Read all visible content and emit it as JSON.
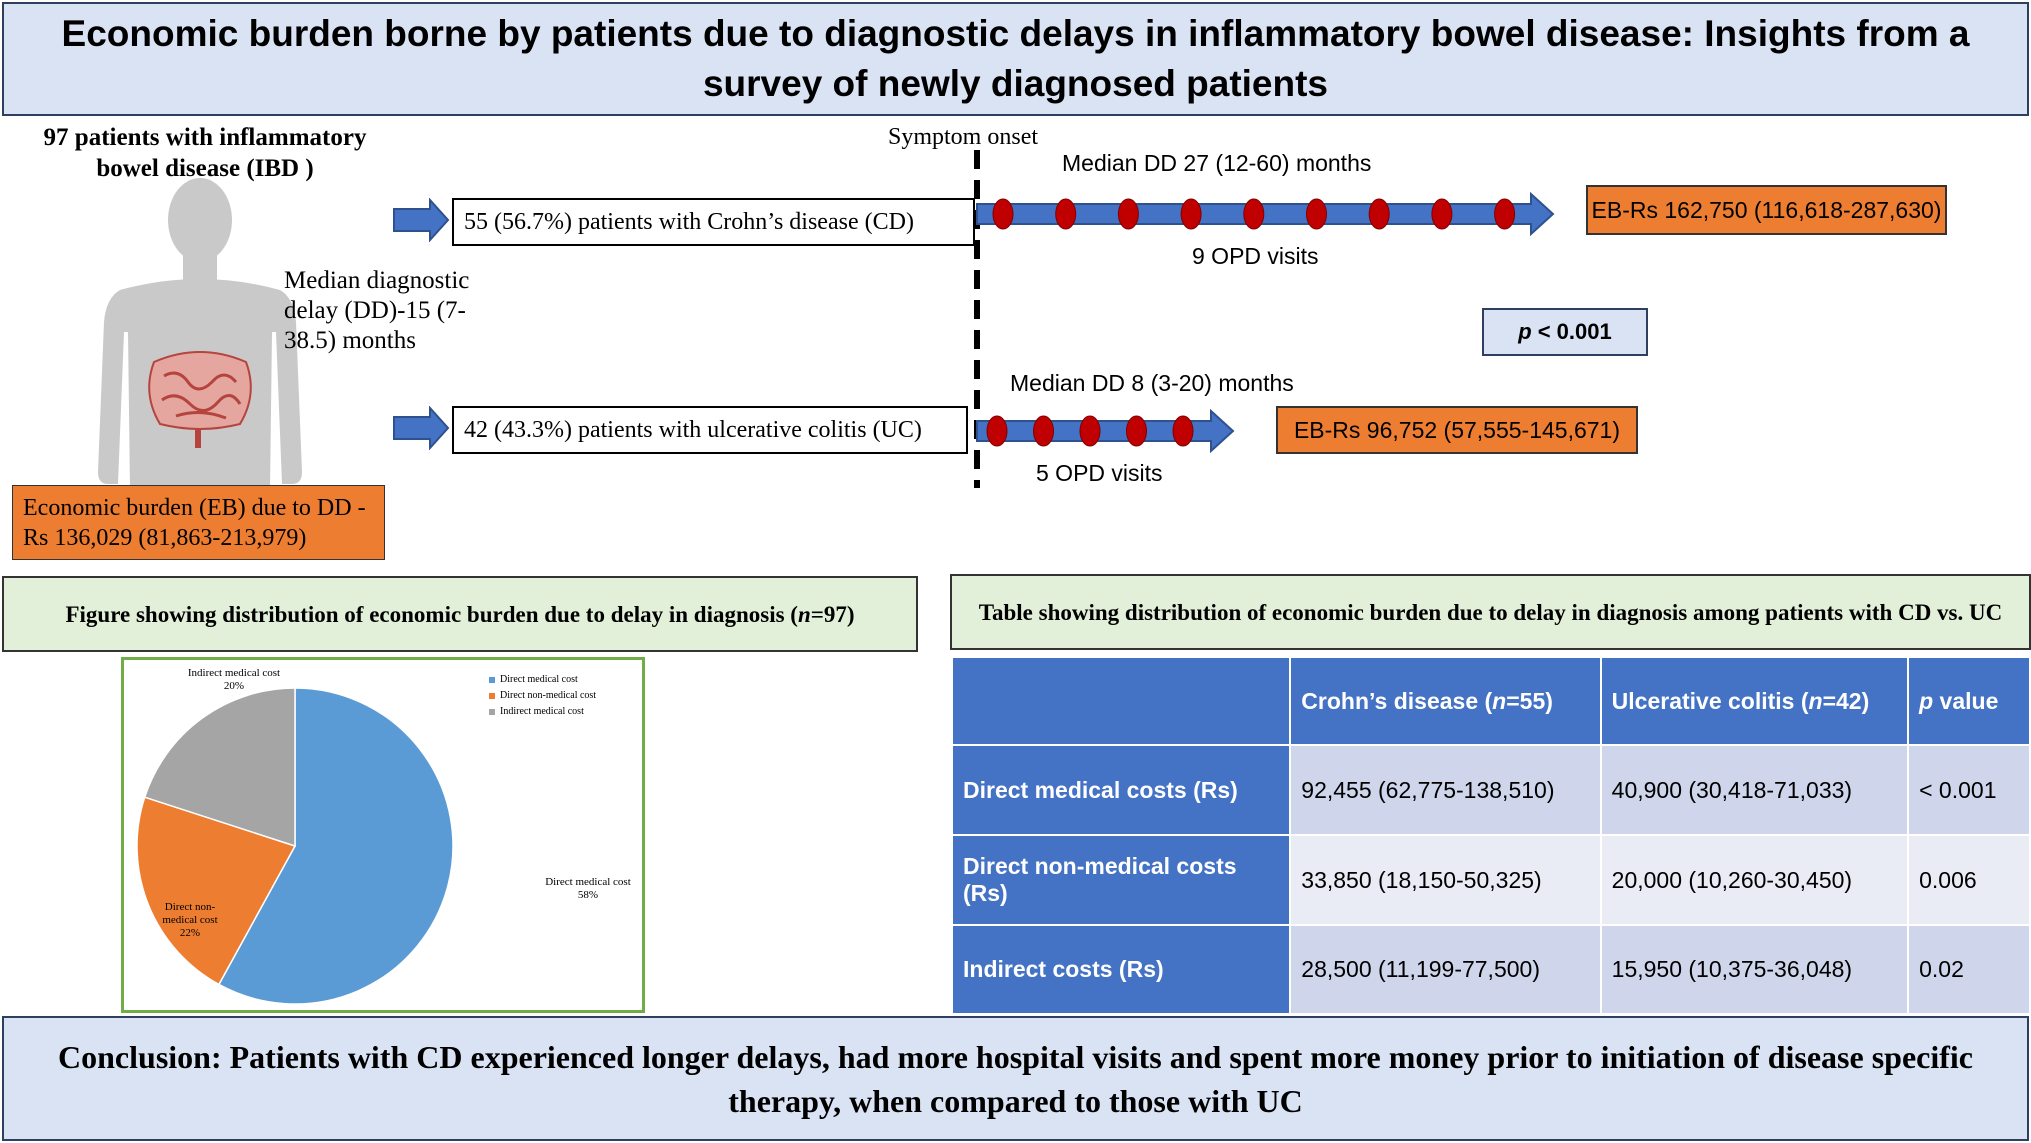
{
  "title": "Economic burden borne by patients due to diagnostic delays in inflammatory bowel disease: Insights from a survey of newly diagnosed patients",
  "overview": {
    "patients_heading": "97 patients with inflammatory bowel disease (IBD )",
    "median_delay": "Median diagnostic delay (DD)-15 (7-38.5) months",
    "economic_burden": "Economic burden (EB) due to DD - Rs 136,029 (81,863-213,979)"
  },
  "timeline": {
    "symptom_onset": "Symptom onset",
    "p_value_label": "p",
    "p_value_text": "< 0.001",
    "cd": {
      "group": "55 (56.7%) patients with Crohn’s disease (CD)",
      "median_dd": "Median DD 27 (12-60) months",
      "visits": "9 OPD visits",
      "visit_count": 9,
      "eb": "EB-Rs 162,750 (116,618-287,630)"
    },
    "uc": {
      "group": "42 (43.3%) patients with ulcerative colitis (UC)",
      "median_dd": "Median DD 8 (3-20) months",
      "visits": "5 OPD visits",
      "visit_count": 5,
      "eb": "EB-Rs 96,752 (57,555-145,671)"
    }
  },
  "figure": {
    "heading_pre": "Figure showing distribution of economic burden due to delay in diagnosis (",
    "heading_n": "n",
    "heading_post": "=97)"
  },
  "chart_data": {
    "type": "pie",
    "title": "",
    "categories": [
      "Direct medical cost",
      "Direct non-medical cost",
      "Indirect medical cost"
    ],
    "values": [
      58,
      22,
      20
    ],
    "colors": [
      "#5b9bd5",
      "#ed7d31",
      "#a5a5a5"
    ],
    "slice_labels": [
      {
        "name": "Direct medical cost",
        "pct": "58%"
      },
      {
        "name": "Direct non-medical cost",
        "pct": "22%"
      },
      {
        "name": "Indirect medical cost",
        "pct": "20%"
      }
    ],
    "legend_position": "top-right"
  },
  "table": {
    "heading": "Table showing distribution of economic burden due to delay in diagnosis among patients with CD vs. UC",
    "columns": {
      "cd_pre": "Crohn’s disease (",
      "cd_n": "n",
      "cd_post": "=55)",
      "uc_pre": "Ulcerative colitis (",
      "uc_n": "n",
      "uc_post": "=42)",
      "p_italic": "p",
      "p_rest": " value"
    },
    "rows": [
      {
        "label": "Direct medical costs (Rs)",
        "cd": "92,455 (62,775-138,510)",
        "uc": "40,900 (30,418-71,033)",
        "p": "< 0.001"
      },
      {
        "label": "Direct non-medical costs (Rs)",
        "cd": "33,850 (18,150-50,325)",
        "uc": "20,000 (10,260-30,450)",
        "p": "0.006"
      },
      {
        "label": "Indirect costs (Rs)",
        "cd": "28,500 (11,199-77,500)",
        "uc": "15,950 (10,375-36,048)",
        "p": "0.02"
      }
    ]
  },
  "conclusion": "Conclusion: Patients with CD experienced longer delays, had more hospital visits and spent more money prior to initiation of disease specific therapy, when compared to those with UC"
}
